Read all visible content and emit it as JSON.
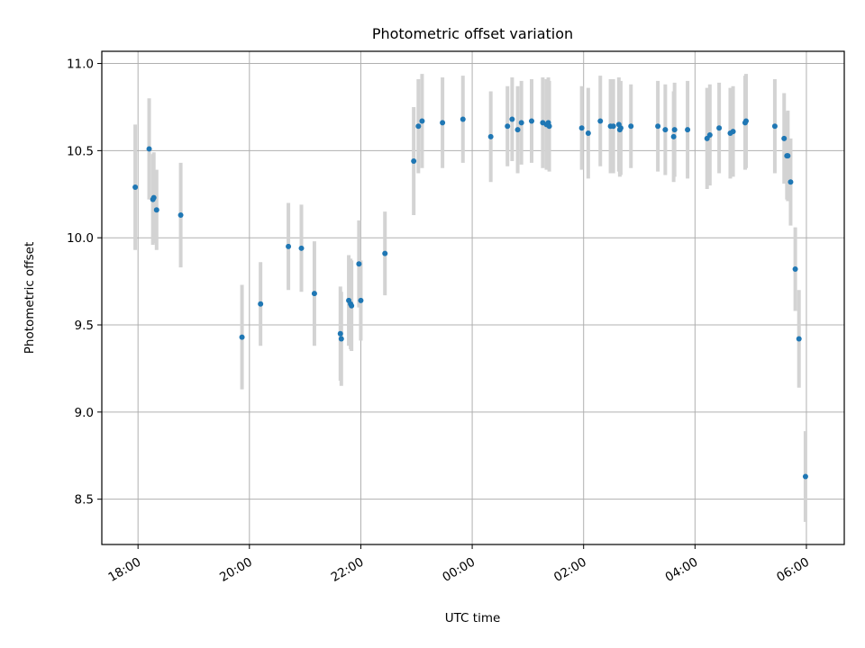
{
  "chart_data": {
    "type": "scatter",
    "title": "Photometric offset variation",
    "xlabel": "UTC time",
    "ylabel": "Photometric offset",
    "x_tick_labels": [
      "18:00",
      "20:00",
      "22:00",
      "00:00",
      "02:00",
      "04:00",
      "06:00"
    ],
    "y_ticks": [
      8.5,
      9.0,
      9.5,
      10.0,
      10.5,
      11.0
    ],
    "y_tick_labels": [
      "8.5",
      "9.0",
      "9.5",
      "10.0",
      "10.5",
      "11.0"
    ],
    "x_range_hours": [
      17.35,
      30.68
    ],
    "ylim": [
      8.24,
      11.07
    ],
    "grid": true,
    "legend": "none",
    "colors": {
      "point": "#1f77b4",
      "errorbar": "#d3d3d3",
      "grid": "#b0b0b0"
    },
    "series": [
      {
        "x_time": [
          "17:57",
          "18:12",
          "18:16",
          "18:17",
          "18:20",
          "18:46",
          "19:52",
          "20:12",
          "20:42",
          "20:56",
          "21:10",
          "21:38",
          "21:39",
          "21:47",
          "21:49",
          "21:50",
          "21:58",
          "22:00",
          "22:26",
          "22:57",
          "23:02",
          "23:06",
          "23:28",
          "23:50",
          "00:20",
          "00:38",
          "00:43",
          "00:49",
          "00:53",
          "01:04",
          "01:16",
          "01:20",
          "01:22",
          "01:23",
          "01:58",
          "02:05",
          "02:18",
          "02:29",
          "02:32",
          "02:38",
          "02:39",
          "02:40",
          "02:51",
          "03:20",
          "03:28",
          "03:37",
          "03:38",
          "03:52",
          "04:13",
          "04:16",
          "04:26",
          "04:38",
          "04:41",
          "04:54",
          "04:55",
          "05:26",
          "05:36",
          "05:39",
          "05:40",
          "05:43",
          "05:48",
          "05:52",
          "05:59"
        ],
        "y": [
          10.29,
          10.51,
          10.22,
          10.23,
          10.16,
          10.13,
          9.43,
          9.62,
          9.95,
          9.94,
          9.68,
          9.45,
          9.42,
          9.64,
          9.62,
          9.61,
          9.85,
          9.64,
          9.91,
          10.44,
          10.64,
          10.67,
          10.66,
          10.68,
          10.58,
          10.64,
          10.68,
          10.62,
          10.66,
          10.67,
          10.66,
          10.65,
          10.66,
          10.64,
          10.63,
          10.6,
          10.67,
          10.64,
          10.64,
          10.65,
          10.62,
          10.63,
          10.64,
          10.64,
          10.62,
          10.58,
          10.62,
          10.62,
          10.57,
          10.59,
          10.63,
          10.6,
          10.61,
          10.66,
          10.67,
          10.64,
          10.57,
          10.47,
          10.47,
          10.32,
          9.82,
          9.42,
          8.63
        ],
        "yerr": [
          0.36,
          0.29,
          0.26,
          0.26,
          0.23,
          0.3,
          0.3,
          0.24,
          0.25,
          0.25,
          0.3,
          0.27,
          0.27,
          0.26,
          0.26,
          0.26,
          0.25,
          0.23,
          0.24,
          0.31,
          0.27,
          0.27,
          0.26,
          0.25,
          0.26,
          0.23,
          0.24,
          0.25,
          0.24,
          0.24,
          0.26,
          0.26,
          0.26,
          0.26,
          0.24,
          0.26,
          0.26,
          0.27,
          0.27,
          0.27,
          0.27,
          0.27,
          0.24,
          0.26,
          0.26,
          0.26,
          0.27,
          0.28,
          0.29,
          0.29,
          0.26,
          0.26,
          0.26,
          0.27,
          0.27,
          0.27,
          0.26,
          0.25,
          0.26,
          0.25,
          0.24,
          0.28,
          0.26
        ]
      }
    ]
  }
}
